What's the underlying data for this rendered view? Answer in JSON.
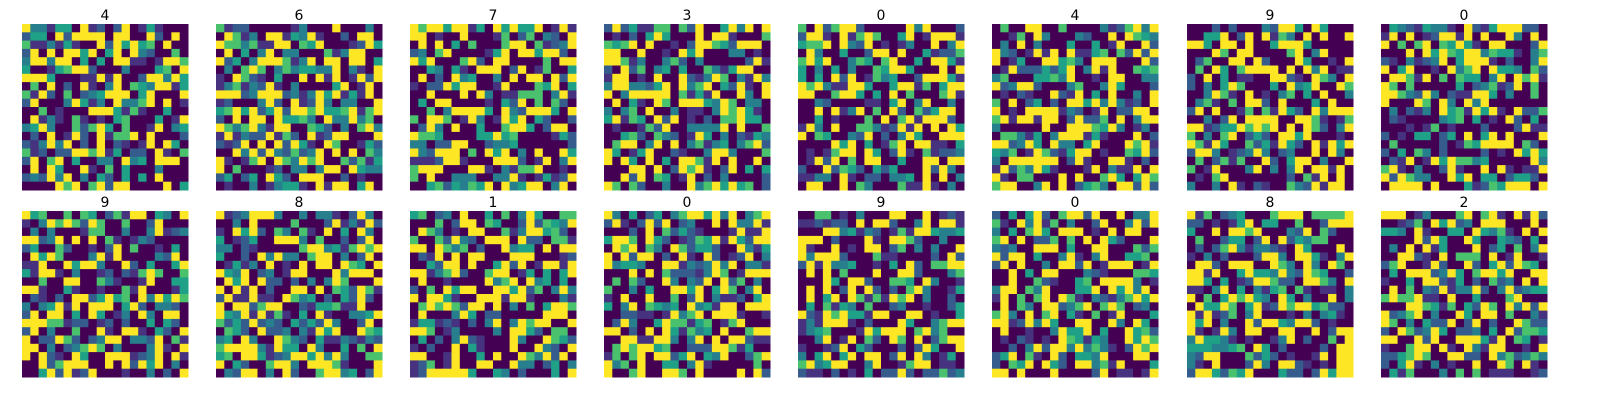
{
  "chart_data": {
    "type": "heatmap",
    "colormap": "viridis",
    "grid_size": [
      20,
      20
    ],
    "value_range": [
      0,
      1
    ],
    "axes_visible": false,
    "layout": "2 rows x 8 columns",
    "panel_titles": [
      "4",
      "6",
      "7",
      "3",
      "0",
      "4",
      "9",
      "0",
      "9",
      "8",
      "1",
      "0",
      "9",
      "0",
      "8",
      "2"
    ]
  },
  "colors": {
    "background": "#ffffff",
    "viridis_low": "#440154",
    "viridis_mid": "#21918c",
    "viridis_high": "#fde725"
  }
}
